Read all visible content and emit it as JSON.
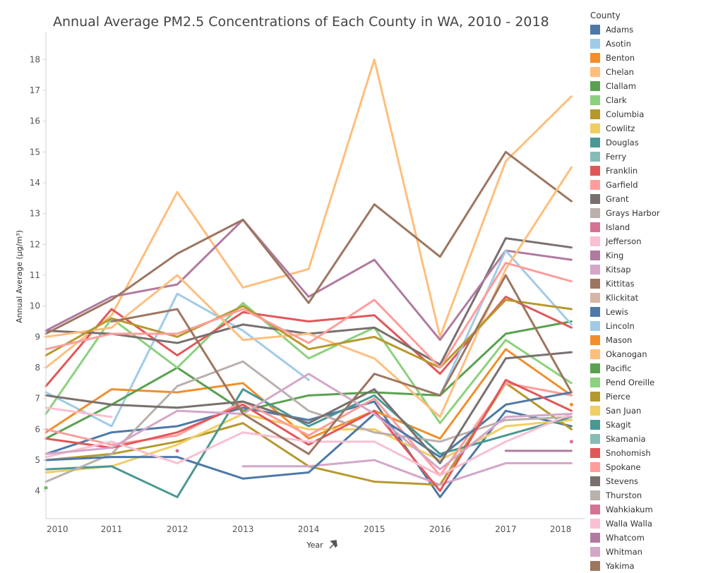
{
  "title": "Annual Average PM2.5 Concentrations  of Each County in WA, 2010 - 2018",
  "chart_data": {
    "type": "line",
    "title": "Annual Average PM2.5 Concentrations  of Each County in WA, 2010 - 2018",
    "xlabel": "Year",
    "ylabel": "Annual Average (µg/m³)",
    "x": [
      2010,
      2011,
      2012,
      2013,
      2014,
      2015,
      2016,
      2017,
      2018
    ],
    "xlim": [
      2010,
      2018.2
    ],
    "ylim": [
      3.1,
      18.9
    ],
    "yticks": [
      4,
      5,
      6,
      7,
      8,
      9,
      10,
      11,
      12,
      13,
      14,
      15,
      16,
      17,
      18
    ],
    "grid": false,
    "legend_title": "County",
    "legend_position": "right",
    "series": [
      {
        "name": "Adams",
        "color": "#4e79a7",
        "values": [
          5.2,
          5.9,
          6.1,
          6.7,
          6.3,
          6.9,
          3.8,
          6.6,
          6.1
        ]
      },
      {
        "name": "Asotin",
        "color": "#a0cbe8",
        "values": [
          7.2,
          6.1,
          10.4,
          9.2,
          7.6,
          null,
          null,
          null,
          null
        ]
      },
      {
        "name": "Benton",
        "color": "#f28e2b",
        "values": [
          5.9,
          7.3,
          7.2,
          7.5,
          5.7,
          6.6,
          5.7,
          8.6,
          7.1
        ]
      },
      {
        "name": "Chelan",
        "color": "#ffbe7d",
        "values": [
          8.0,
          9.7,
          13.7,
          10.6,
          11.2,
          18.0,
          9.0,
          14.7,
          16.8
        ]
      },
      {
        "name": "Clallam",
        "color": "#59a14f",
        "values": [
          5.7,
          6.8,
          8.0,
          6.6,
          7.1,
          7.2,
          7.1,
          9.1,
          9.5
        ]
      },
      {
        "name": "Clark",
        "color": "#8cd17d",
        "values": [
          6.5,
          9.6,
          8.0,
          10.1,
          8.3,
          9.3,
          6.2,
          8.9,
          7.5
        ]
      },
      {
        "name": "Columbia",
        "color": "#b6992d",
        "values": [
          5.0,
          5.2,
          5.6,
          6.2,
          4.8,
          4.3,
          4.2,
          7.5,
          6.0
        ]
      },
      {
        "name": "Cowlitz",
        "color": "#f1ce63",
        "values": [
          4.6,
          4.8,
          5.5,
          6.5,
          6.0,
          6.0,
          5.0,
          6.1,
          6.3
        ]
      },
      {
        "name": "Douglas",
        "color": "#499894",
        "values": [
          4.7,
          4.8,
          3.8,
          7.3,
          6.1,
          7.1,
          5.2,
          5.8,
          6.4
        ]
      },
      {
        "name": "Ferry",
        "color": "#86bcb6",
        "values": [
          null,
          null,
          null,
          null,
          null,
          null,
          null,
          null,
          null
        ]
      },
      {
        "name": "Franklin",
        "color": "#e15759",
        "values": [
          7.4,
          9.9,
          8.4,
          9.8,
          9.5,
          9.7,
          7.8,
          10.3,
          9.3
        ]
      },
      {
        "name": "Garfield",
        "color": "#ff9d9a",
        "values": [
          6.0,
          5.5,
          5.8,
          6.9,
          5.8,
          7.0,
          4.5,
          7.5,
          7.1
        ]
      },
      {
        "name": "Grant",
        "color": "#79706e",
        "values": [
          9.2,
          9.1,
          8.8,
          9.4,
          9.1,
          9.3,
          8.1,
          12.2,
          11.9
        ]
      },
      {
        "name": "Grays Harbor",
        "color": "#bab0ac",
        "values": [
          4.3,
          5.2,
          7.4,
          8.2,
          6.6,
          5.9,
          5.6,
          6.3,
          6.4
        ]
      },
      {
        "name": "Island",
        "color": "#d37295",
        "values": [
          null,
          null,
          null,
          null,
          null,
          null,
          null,
          null,
          null
        ]
      },
      {
        "name": "Jefferson",
        "color": "#fabfd2",
        "values": [
          6.7,
          6.4,
          null,
          null,
          null,
          null,
          null,
          null,
          null
        ]
      },
      {
        "name": "King",
        "color": "#b07aa1",
        "values": [
          9.2,
          10.3,
          10.7,
          12.8,
          10.3,
          11.5,
          8.9,
          11.8,
          11.5
        ]
      },
      {
        "name": "Kitsap",
        "color": "#d4a6c8",
        "values": [
          null,
          null,
          null,
          4.8,
          4.8,
          5.0,
          4.2,
          4.9,
          4.9
        ]
      },
      {
        "name": "Kittitas",
        "color": "#9d7660",
        "values": [
          9.1,
          10.2,
          11.7,
          12.8,
          10.1,
          13.3,
          11.6,
          15.0,
          13.4
        ]
      },
      {
        "name": "Klickitat",
        "color": "#d7b5a6",
        "values": [
          null,
          null,
          null,
          null,
          null,
          null,
          null,
          null,
          null
        ]
      },
      {
        "name": "Lewis",
        "color": "#4e79a7",
        "values": [
          5.0,
          5.1,
          5.1,
          4.4,
          4.6,
          6.5,
          5.1,
          6.8,
          7.2
        ]
      },
      {
        "name": "Lincoln",
        "color": "#a0cbe8",
        "values": [
          null,
          null,
          null,
          null,
          null,
          null,
          7.1,
          11.8,
          9.4
        ]
      },
      {
        "name": "Mason",
        "color": "#f28e2b",
        "values": [
          null,
          null,
          null,
          null,
          null,
          null,
          null,
          null,
          6.8
        ]
      },
      {
        "name": "Okanogan",
        "color": "#ffbe7d",
        "values": [
          9.0,
          9.3,
          11.0,
          8.9,
          9.1,
          8.3,
          6.4,
          11.2,
          14.5
        ]
      },
      {
        "name": "Pacific",
        "color": "#59a14f",
        "values": [
          4.1,
          null,
          null,
          null,
          null,
          null,
          null,
          null,
          null
        ]
      },
      {
        "name": "Pend Oreille",
        "color": "#8cd17d",
        "values": [
          null,
          null,
          null,
          null,
          null,
          null,
          null,
          null,
          null
        ]
      },
      {
        "name": "Pierce",
        "color": "#b6992d",
        "values": [
          8.4,
          9.6,
          9.0,
          10.0,
          8.6,
          9.0,
          8.0,
          10.2,
          9.9
        ]
      },
      {
        "name": "San Juan",
        "color": "#f1ce63",
        "values": [
          null,
          null,
          null,
          null,
          null,
          null,
          null,
          null,
          null
        ]
      },
      {
        "name": "Skagit",
        "color": "#499894",
        "values": [
          null,
          null,
          null,
          null,
          null,
          null,
          null,
          null,
          null
        ]
      },
      {
        "name": "Skamania",
        "color": "#86bcb6",
        "values": [
          null,
          null,
          null,
          null,
          null,
          null,
          null,
          null,
          null
        ]
      },
      {
        "name": "Snohomish",
        "color": "#e15759",
        "values": [
          5.7,
          5.4,
          5.9,
          6.8,
          5.5,
          6.6,
          4.0,
          7.6,
          6.6
        ]
      },
      {
        "name": "Spokane",
        "color": "#ff9d9a",
        "values": [
          8.6,
          9.1,
          9.1,
          9.9,
          8.8,
          10.2,
          8.0,
          11.4,
          10.8
        ]
      },
      {
        "name": "Stevens",
        "color": "#79706e",
        "values": [
          7.1,
          6.8,
          6.7,
          6.9,
          6.2,
          7.3,
          4.9,
          8.3,
          8.5
        ]
      },
      {
        "name": "Thurston",
        "color": "#bab0ac",
        "values": [
          null,
          null,
          null,
          null,
          null,
          null,
          null,
          null,
          null
        ]
      },
      {
        "name": "Wahkiakum",
        "color": "#d37295",
        "values": [
          null,
          null,
          5.3,
          null,
          null,
          null,
          null,
          null,
          5.6
        ]
      },
      {
        "name": "Walla Walla",
        "color": "#fabfd2",
        "values": [
          5.1,
          5.6,
          4.9,
          5.9,
          5.6,
          5.6,
          4.5,
          5.6,
          6.5
        ]
      },
      {
        "name": "Whatcom",
        "color": "#b07aa1",
        "values": [
          null,
          null,
          null,
          null,
          null,
          null,
          null,
          5.3,
          5.3
        ]
      },
      {
        "name": "Whitman",
        "color": "#d4a6c8",
        "values": [
          5.2,
          5.4,
          6.6,
          6.5,
          7.8,
          6.5,
          4.7,
          6.4,
          6.5
        ]
      },
      {
        "name": "Yakima",
        "color": "#9d7660",
        "values": [
          null,
          9.5,
          9.9,
          6.5,
          5.2,
          7.8,
          7.1,
          11.0,
          7.2
        ]
      }
    ]
  }
}
